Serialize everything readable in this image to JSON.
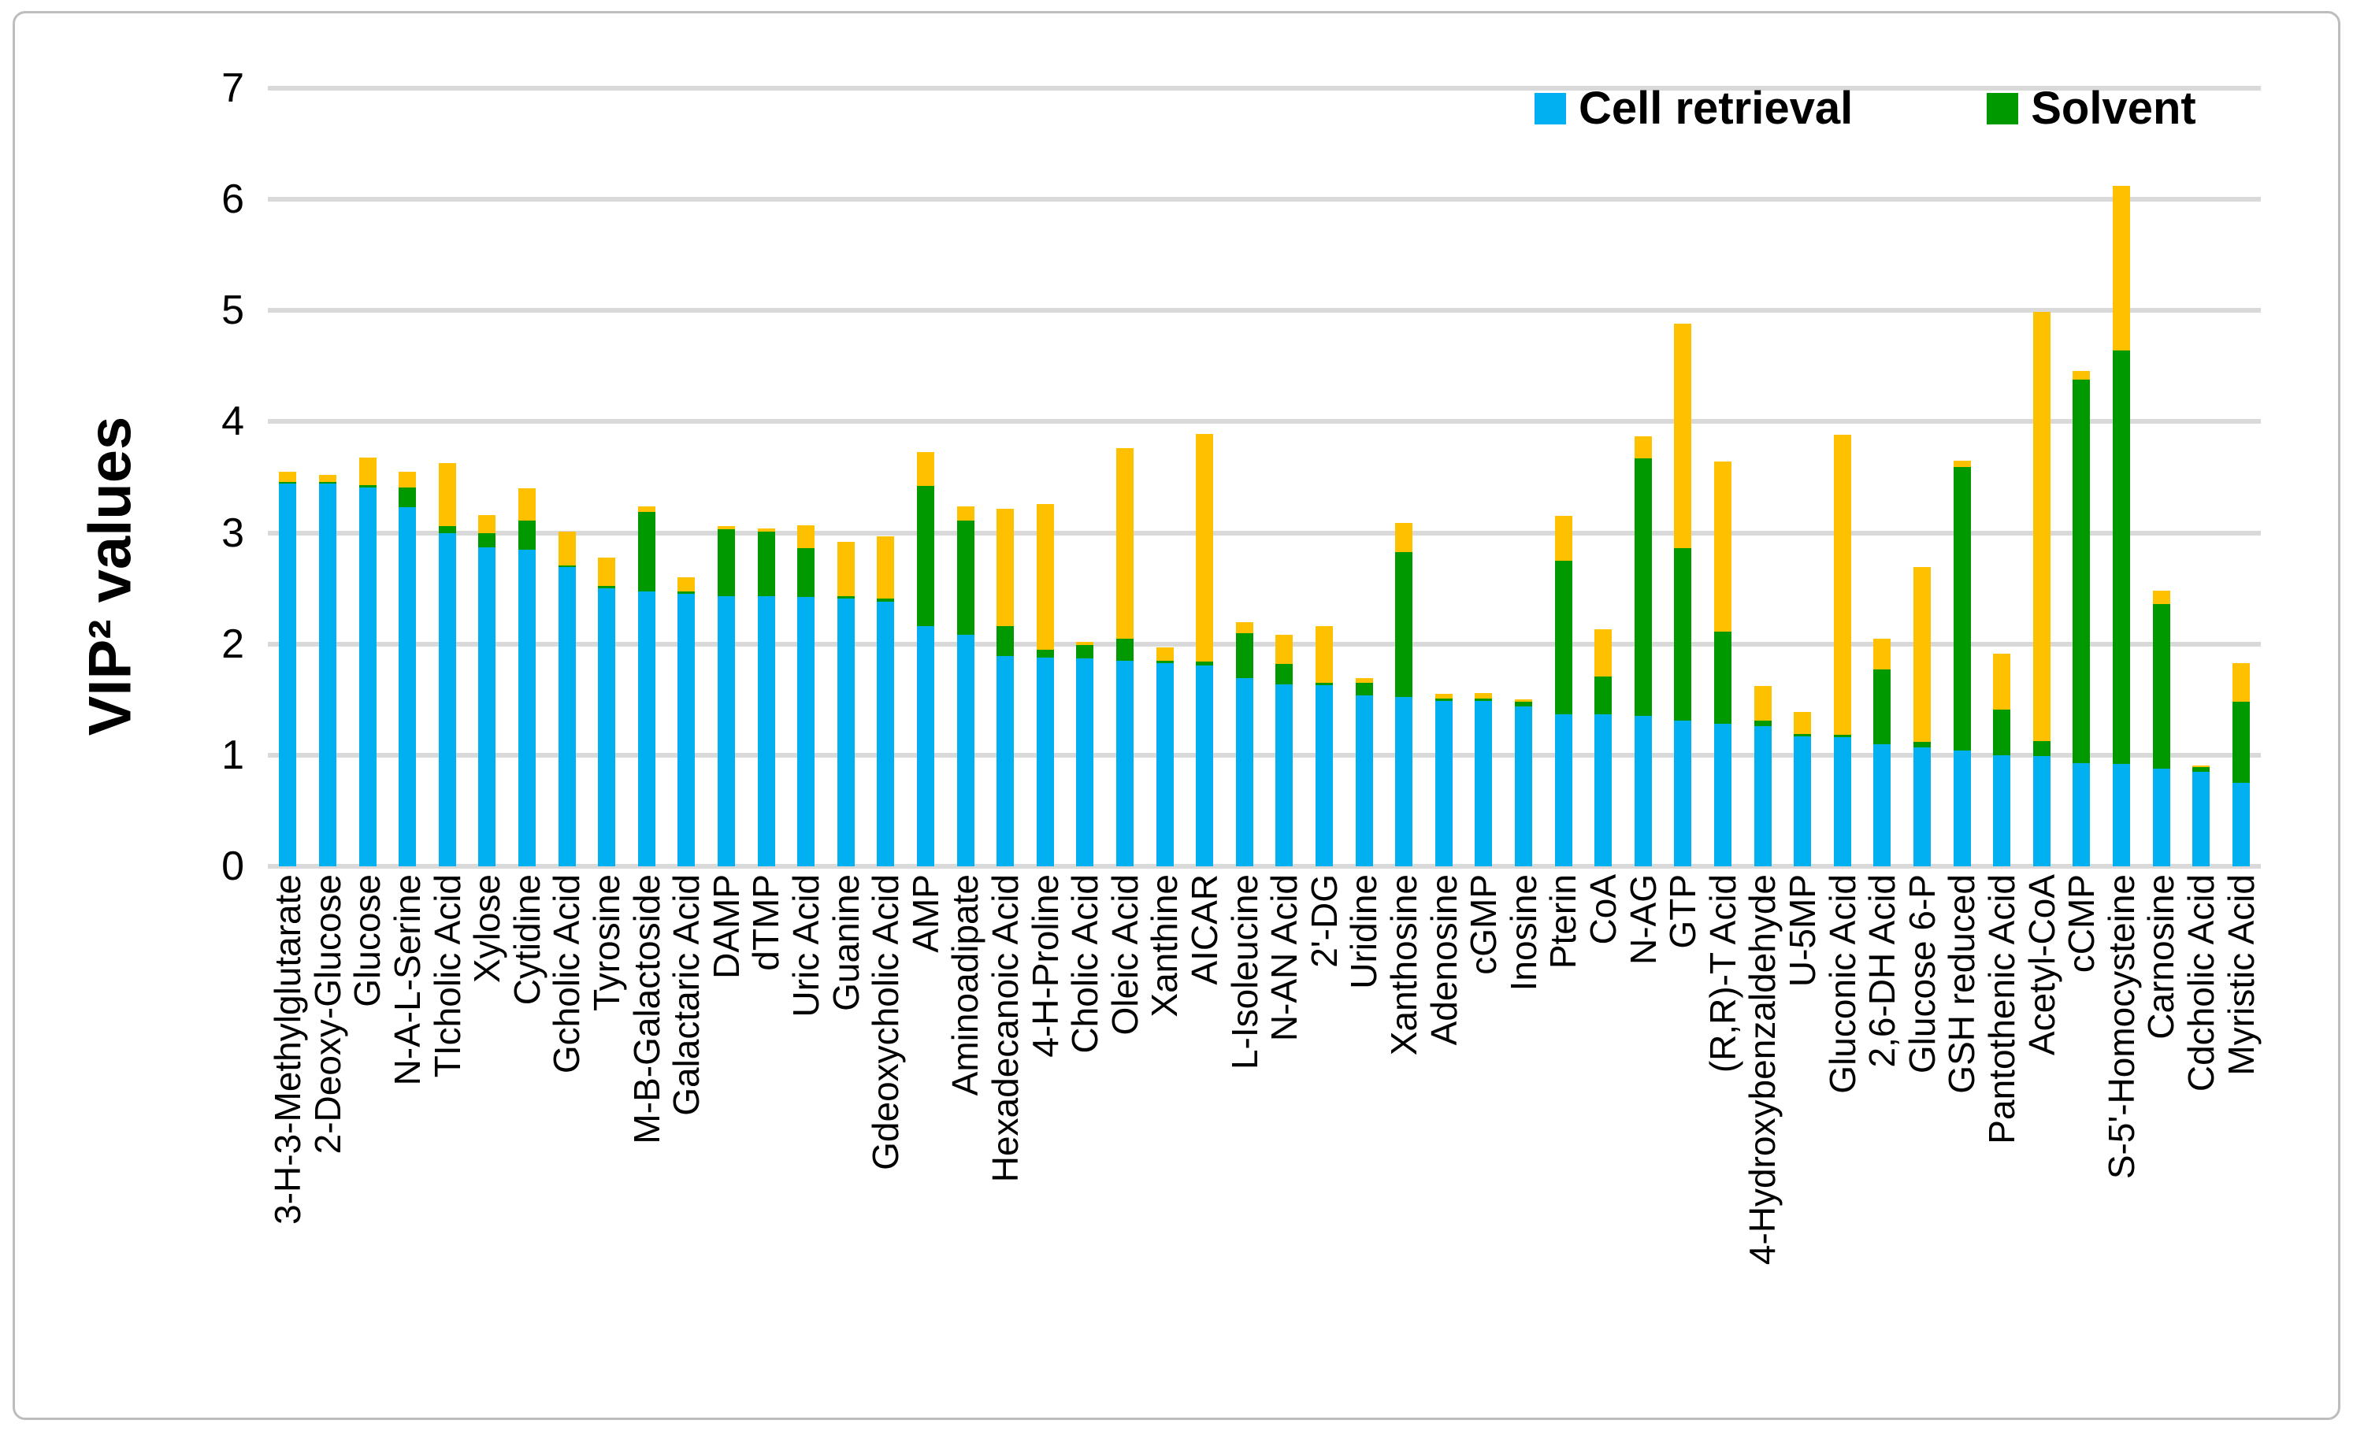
{
  "figure": {
    "y_axis_title": "VIP² values",
    "background": "#ffffff",
    "frame_border_color": "#bdbdbd",
    "gridline_color": "#d9d9d9"
  },
  "legend": {
    "items": [
      {
        "label": "Cell retrieval",
        "color": "#00B0F0"
      },
      {
        "label": "Solvent",
        "color": "#009A00"
      }
    ]
  },
  "chart_data": {
    "type": "bar",
    "stacked": true,
    "title": "",
    "xlabel": "",
    "ylabel": "VIP² values",
    "ylim": [
      0,
      7
    ],
    "yticks": [
      0,
      1,
      2,
      3,
      4,
      5,
      6,
      7
    ],
    "grid": true,
    "legend_position": "top-right",
    "legend_visible_entries": [
      "Cell retrieval",
      "Solvent"
    ],
    "categories": [
      "3-H-3-Methylglutarate",
      "2-Deoxy-Glucose",
      "Glucose",
      "N-A-L-Serine",
      "TIcholic Acid",
      "Xylose",
      "Cytidine",
      "Gcholic Acid",
      "Tyrosine",
      "M-B-Galactoside",
      "Galactaric Acid",
      "DAMP",
      "dTMP",
      "Uric Acid",
      "Guanine",
      "Gdeoxycholic Acid",
      "AMP",
      "Aminoadipate",
      "Hexadecanoic Acid",
      "4-H-Proline",
      "Cholic Acid",
      "Oleic Acid",
      "Xanthine",
      "AICAR",
      "L-Isoleucine",
      "N-AN Acid",
      "2'-DG",
      "Uridine",
      "Xanthosine",
      "Adenosine",
      "cGMP",
      "Inosine",
      "Pterin",
      "CoA",
      "N-AG",
      "GTP",
      "(R,R)-T Acid",
      "4-Hydroxybenzaldehyde",
      "U-5MP",
      "Gluconic Acid",
      "2,6-DH Acid",
      "Glucose 6-P",
      "GSH reduced",
      "Pantothenic Acid",
      "Acetyl-CoA",
      "cCMP",
      "S-5'-Homocysteine",
      "Carnosine",
      "Cdcholic Acid",
      "Myristic Acid"
    ],
    "series": [
      {
        "name": "Cell retrieval",
        "color": "#00B0F0",
        "values": [
          3.44,
          3.44,
          3.41,
          3.23,
          3.0,
          2.87,
          2.85,
          2.69,
          2.5,
          2.47,
          2.45,
          2.43,
          2.43,
          2.42,
          2.41,
          2.38,
          2.16,
          2.08,
          1.89,
          1.88,
          1.87,
          1.85,
          1.83,
          1.81,
          1.69,
          1.64,
          1.63,
          1.54,
          1.52,
          1.49,
          1.49,
          1.44,
          1.37,
          1.37,
          1.35,
          1.31,
          1.28,
          1.26,
          1.17,
          1.16,
          1.1,
          1.07,
          1.04,
          1.0,
          0.99,
          0.93,
          0.92,
          0.88,
          0.85,
          0.75
        ]
      },
      {
        "name": "Solvent",
        "color": "#009A00",
        "values": [
          0.02,
          0.02,
          0.02,
          0.18,
          0.06,
          0.13,
          0.26,
          0.02,
          0.02,
          0.72,
          0.02,
          0.6,
          0.58,
          0.44,
          0.02,
          0.03,
          1.26,
          1.03,
          0.27,
          0.07,
          0.12,
          0.2,
          0.02,
          0.03,
          0.41,
          0.18,
          0.02,
          0.11,
          1.31,
          0.02,
          0.02,
          0.04,
          1.38,
          0.34,
          2.32,
          1.55,
          0.83,
          0.05,
          0.02,
          0.02,
          0.67,
          0.05,
          2.55,
          0.41,
          0.14,
          3.45,
          3.72,
          1.48,
          0.04,
          0.73
        ]
      },
      {
        "name": "(unlabeled yellow series)",
        "color": "#FFC000",
        "values": [
          0.09,
          0.06,
          0.25,
          0.14,
          0.57,
          0.16,
          0.29,
          0.3,
          0.26,
          0.05,
          0.13,
          0.03,
          0.03,
          0.21,
          0.49,
          0.56,
          0.31,
          0.13,
          1.06,
          1.31,
          0.03,
          1.71,
          0.12,
          2.05,
          0.1,
          0.26,
          0.51,
          0.04,
          0.26,
          0.04,
          0.05,
          0.02,
          0.4,
          0.42,
          0.2,
          2.02,
          1.53,
          0.31,
          0.2,
          2.7,
          0.28,
          1.57,
          0.06,
          0.5,
          3.86,
          0.08,
          1.48,
          0.12,
          0.02,
          0.35
        ]
      }
    ]
  }
}
